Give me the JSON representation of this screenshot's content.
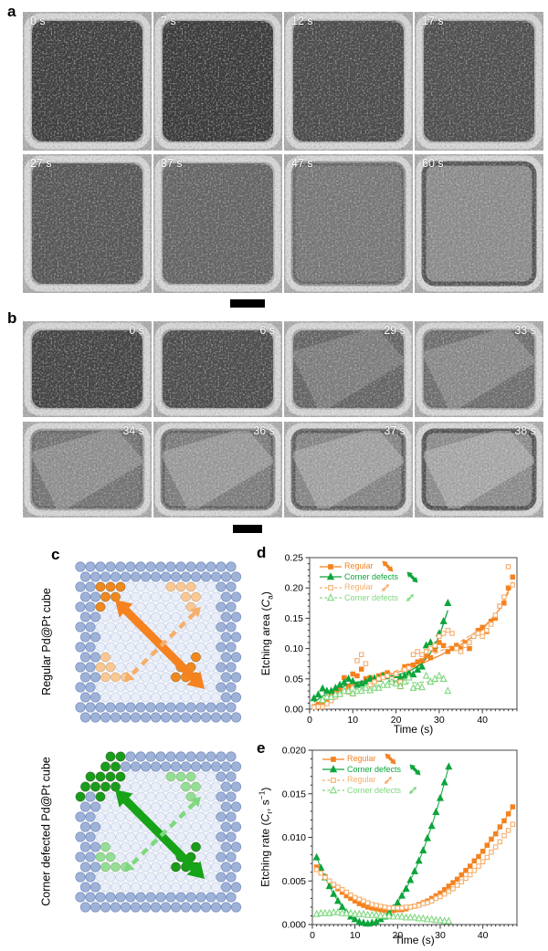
{
  "panel_a": {
    "label": "a",
    "frames": [
      {
        "time": "0 s",
        "etch": 0.05
      },
      {
        "time": "7 s",
        "etch": 0.0
      },
      {
        "time": "12 s",
        "etch": 0.18
      },
      {
        "time": "17 s",
        "etch": 0.22
      },
      {
        "time": "27 s",
        "etch": 0.3
      },
      {
        "time": "37 s",
        "etch": 0.45
      },
      {
        "time": "47 s",
        "etch": 0.65
      },
      {
        "time": "60 s",
        "etch": 0.85
      }
    ]
  },
  "panel_b": {
    "label": "b",
    "frames": [
      {
        "time": "0 s",
        "etch": 0.1
      },
      {
        "time": "6 s",
        "etch": 0.2
      },
      {
        "time": "29 s",
        "etch": 0.45
      },
      {
        "time": "33 s",
        "etch": 0.55
      },
      {
        "time": "34 s",
        "etch": 0.6
      },
      {
        "time": "36 s",
        "etch": 0.7
      },
      {
        "time": "37 s",
        "etch": 0.78
      },
      {
        "time": "38 s",
        "etch": 0.85
      }
    ]
  },
  "panel_c": {
    "label": "c",
    "atom_colors": {
      "border": "#9FB3D9",
      "border_stroke": "#7C93C0",
      "inner": "#E9EEF8",
      "inner_stroke": "#C9D3E7"
    },
    "cubes": [
      {
        "title": "Regular Pd@Pt cube",
        "defect": false,
        "strong_color": "#F08A1F",
        "light_color": "#FAC893",
        "arrow_solid": "#F5821F",
        "arrow_dashed": "#F6AE6B"
      },
      {
        "title": "Corner defected Pd@Pt cube",
        "defect": true,
        "strong_color": "#1B9C1B",
        "light_color": "#95DE95",
        "arrow_solid": "#17A317",
        "arrow_dashed": "#7FD87F"
      }
    ]
  },
  "chart_data": [
    {
      "id": "d",
      "label": "d",
      "type": "scatter",
      "xlabel": "Time (s)",
      "ylabel_parts": [
        {
          "t": "Etching area ("
        },
        {
          "t": "C",
          "i": true
        },
        {
          "t": "a",
          "sub": true
        },
        {
          "t": ")"
        }
      ],
      "xlim": [
        0,
        48
      ],
      "ylim": [
        0,
        0.25
      ],
      "xticks": [
        0,
        10,
        20,
        30,
        40
      ],
      "x_minor_step": 1,
      "yticks": [
        0,
        0.05,
        0.1,
        0.15,
        0.2,
        0.25
      ],
      "y_minor_step": 0.01,
      "y_decimals": 2,
      "grid": false,
      "legend_position": "upper-left",
      "legend": [
        {
          "label": "Regular",
          "color": "#F5821F",
          "marker": "square",
          "filled": true,
          "line": "solid",
          "arrow": {
            "style": "solid",
            "color": "#F5821F",
            "size": 17
          }
        },
        {
          "label": "Corner defects",
          "color": "#0DA53C",
          "marker": "triangle",
          "filled": true,
          "line": "solid",
          "arrow": {
            "style": "solid",
            "color": "#0DA53C",
            "size": 17
          }
        },
        {
          "label": "Regular",
          "color": "#F6AE6B",
          "marker": "square",
          "filled": false,
          "line": "dashed",
          "arrow": {
            "style": "dashed",
            "color": "#F6AE6B",
            "size": 12
          }
        },
        {
          "label": "Corner defects",
          "color": "#7FD87F",
          "marker": "triangle",
          "filled": false,
          "line": "dashed",
          "arrow": {
            "style": "dashed",
            "color": "#7FD87F",
            "size": 12
          }
        }
      ],
      "series": [
        {
          "name": "Regular",
          "marker": "square",
          "filled": true,
          "line": "none",
          "color": "#F5821F",
          "x0": 1,
          "dx": 1,
          "y": [
            0.004,
            0.008,
            0.012,
            0.013,
            0.022,
            0.028,
            0.033,
            0.052,
            0.038,
            0.058,
            0.055,
            0.066,
            0.05,
            0.052,
            0.047,
            0.055,
            0.057,
            0.06,
            0.048,
            0.042,
            0.037,
            0.07,
            0.071,
            0.073,
            0.078,
            0.08,
            0.088,
            0.085,
            0.098,
            0.11,
            0.105,
            0.095,
            0.1,
            0.105,
            0.1,
            0.11,
            0.1,
            0.12,
            0.13,
            0.135,
            0.128,
            0.145,
            0.15,
            0.17,
            0.175,
            0.2,
            0.218
          ]
        },
        {
          "name": "Corner defects",
          "marker": "triangle",
          "filled": true,
          "line": "none",
          "color": "#0DA53C",
          "x0": 1,
          "dx": 1,
          "y": [
            0.018,
            0.024,
            0.034,
            0.03,
            0.03,
            0.035,
            0.04,
            0.044,
            0.05,
            0.046,
            0.04,
            0.042,
            0.045,
            0.05,
            0.051,
            0.05,
            0.055,
            0.054,
            0.05,
            0.056,
            0.052,
            0.055,
            0.06,
            0.057,
            0.065,
            0.07,
            0.105,
            0.11,
            0.105,
            0.125,
            0.145,
            0.175
          ]
        },
        {
          "name": "Regular (open)",
          "marker": "square",
          "filled": false,
          "line": "none",
          "color": "#F6AE6B",
          "x0": 1,
          "dx": 1,
          "y": [
            0.003,
            0.004,
            0.004,
            0.009,
            0.014,
            0.02,
            0.024,
            0.03,
            0.028,
            0.025,
            0.08,
            0.09,
            0.075,
            0.04,
            0.045,
            0.05,
            0.052,
            0.055,
            0.05,
            0.058,
            0.045,
            0.065,
            0.068,
            0.09,
            0.095,
            0.09,
            0.095,
            0.1,
            0.105,
            0.12,
            0.125,
            0.13,
            0.125,
            0.1,
            0.095,
            0.105,
            0.11,
            0.12,
            0.125,
            0.12,
            0.13,
            0.14,
            0.155,
            0.17,
            0.185,
            0.235,
            0.205
          ]
        },
        {
          "name": "Corner defects (open)",
          "marker": "triangle",
          "filled": false,
          "line": "none",
          "color": "#7FD87F",
          "x0": 3,
          "dx": 1,
          "y": [
            0.015,
            0.02,
            0.02,
            0.024,
            0.025,
            0.03,
            0.03,
            0.026,
            0.03,
            0.03,
            0.035,
            0.031,
            0.035,
            0.035,
            0.04,
            0.04,
            0.045,
            0.042,
            0.038,
            0.045,
            0.052,
            0.035,
            0.038,
            0.036,
            0.055,
            0.045,
            0.05,
            0.055,
            0.05,
            0.03
          ]
        }
      ],
      "fits": [
        {
          "style": "solid",
          "color": "#F5821F",
          "points": [
            [
              1,
              0.007
            ],
            [
              5,
              0.022
            ],
            [
              10,
              0.04
            ],
            [
              15,
              0.051
            ],
            [
              20,
              0.06
            ],
            [
              25,
              0.072
            ],
            [
              30,
              0.088
            ],
            [
              35,
              0.106
            ],
            [
              40,
              0.131
            ],
            [
              44,
              0.165
            ],
            [
              47,
              0.21
            ]
          ]
        },
        {
          "style": "dashed",
          "color": "#F6AE6B",
          "points": [
            [
              1,
              0.004
            ],
            [
              5,
              0.018
            ],
            [
              10,
              0.038
            ],
            [
              15,
              0.052
            ],
            [
              20,
              0.063
            ],
            [
              25,
              0.078
            ],
            [
              30,
              0.095
            ],
            [
              35,
              0.112
            ],
            [
              40,
              0.134
            ],
            [
              44,
              0.164
            ],
            [
              47,
              0.205
            ]
          ]
        },
        {
          "style": "solid",
          "color": "#0DA53C",
          "points": [
            [
              1,
              0.012
            ],
            [
              5,
              0.03
            ],
            [
              10,
              0.043
            ],
            [
              15,
              0.05
            ],
            [
              20,
              0.056
            ],
            [
              23,
              0.062
            ],
            [
              26,
              0.075
            ],
            [
              28,
              0.093
            ],
            [
              30,
              0.12
            ],
            [
              32,
              0.163
            ]
          ]
        },
        {
          "style": "dashed",
          "color": "#7FD87F",
          "points": [
            [
              2,
              0.02
            ],
            [
              5,
              0.027
            ],
            [
              10,
              0.033
            ],
            [
              15,
              0.038
            ],
            [
              20,
              0.042
            ],
            [
              25,
              0.044
            ],
            [
              30,
              0.046
            ],
            [
              32,
              0.046
            ]
          ]
        }
      ]
    },
    {
      "id": "e",
      "label": "e",
      "type": "line",
      "xlabel": "Time (s)",
      "ylabel_parts": [
        {
          "t": "Etching rate ("
        },
        {
          "t": "C",
          "i": true
        },
        {
          "t": "r",
          "sub": true
        },
        {
          "t": ", s"
        },
        {
          "t": "−1",
          "sup": true
        },
        {
          "t": ")"
        }
      ],
      "xlim": [
        0,
        48
      ],
      "ylim": [
        0,
        0.02
      ],
      "xticks": [
        0,
        10,
        20,
        30,
        40
      ],
      "x_minor_step": 1,
      "yticks": [
        0,
        0.005,
        0.01,
        0.015,
        0.02
      ],
      "y_minor_step": 0.001,
      "y_decimals": 3,
      "grid": false,
      "legend_position": "upper-left",
      "legend": [
        {
          "label": "Regular",
          "color": "#F5821F",
          "marker": "square",
          "filled": true,
          "line": "solid",
          "arrow": {
            "style": "solid",
            "color": "#F5821F",
            "size": 17
          }
        },
        {
          "label": "Corner defects",
          "color": "#0DA53C",
          "marker": "triangle",
          "filled": true,
          "line": "solid",
          "arrow": {
            "style": "solid",
            "color": "#0DA53C",
            "size": 17
          }
        },
        {
          "label": "Regular",
          "color": "#F6AE6B",
          "marker": "square",
          "filled": false,
          "line": "dashed",
          "arrow": {
            "style": "dashed",
            "color": "#F6AE6B",
            "size": 12
          }
        },
        {
          "label": "Corner defects",
          "color": "#7FD87F",
          "marker": "triangle",
          "filled": false,
          "line": "dashed",
          "arrow": {
            "style": "dashed",
            "color": "#7FD87F",
            "size": 12
          }
        }
      ],
      "series": [
        {
          "name": "Regular",
          "marker": "square",
          "filled": true,
          "line": "solid",
          "color": "#F5821F",
          "x0": 1,
          "dx": 1,
          "y": [
            0.0066,
            0.006,
            0.0055,
            0.005,
            0.0045,
            0.0041,
            0.0037,
            0.0033,
            0.003,
            0.0027,
            0.0024,
            0.0022,
            0.002,
            0.0019,
            0.0018,
            0.0017,
            0.0016,
            0.0016,
            0.0016,
            0.0017,
            0.0017,
            0.0018,
            0.002,
            0.0021,
            0.0023,
            0.0025,
            0.0027,
            0.003,
            0.0033,
            0.0036,
            0.004,
            0.0044,
            0.0048,
            0.0052,
            0.0057,
            0.0062,
            0.0067,
            0.0073,
            0.0078,
            0.0084,
            0.0091,
            0.0098,
            0.0104,
            0.0112,
            0.0119,
            0.0127,
            0.0135
          ]
        },
        {
          "name": "Corner defects",
          "marker": "triangle",
          "filled": true,
          "line": "solid",
          "color": "#0DA53C",
          "x0": 1,
          "dx": 1,
          "y": [
            0.0077,
            0.0065,
            0.0054,
            0.0044,
            0.0035,
            0.0027,
            0.002,
            0.0014,
            0.0009,
            0.0006,
            0.0003,
            0.0002,
            0.0001,
            0.0002,
            0.0003,
            0.0006,
            0.0009,
            0.0013,
            0.0019,
            0.0025,
            0.0033,
            0.0041,
            0.0051,
            0.0061,
            0.0073,
            0.0085,
            0.0099,
            0.0113,
            0.0129,
            0.0145,
            0.0163,
            0.0181
          ]
        },
        {
          "name": "Regular (open)",
          "marker": "square",
          "filled": false,
          "line": "dashed",
          "color": "#F6AE6B",
          "x0": 1,
          "dx": 1,
          "y": [
            0.0063,
            0.0059,
            0.0054,
            0.005,
            0.0046,
            0.0043,
            0.004,
            0.0037,
            0.0034,
            0.0031,
            0.0029,
            0.0027,
            0.0025,
            0.0023,
            0.0022,
            0.0021,
            0.002,
            0.0019,
            0.0019,
            0.0019,
            0.0019,
            0.002,
            0.002,
            0.0021,
            0.0022,
            0.0024,
            0.0025,
            0.0027,
            0.003,
            0.0032,
            0.0035,
            0.0038,
            0.0041,
            0.0045,
            0.0049,
            0.0053,
            0.0057,
            0.0062,
            0.0067,
            0.0072,
            0.0077,
            0.0083,
            0.0089,
            0.0095,
            0.0102,
            0.0108,
            0.0115
          ]
        },
        {
          "name": "Corner defects (open)",
          "marker": "triangle",
          "filled": false,
          "line": "dashed",
          "color": "#7FD87F",
          "x0": 1,
          "dx": 1,
          "y": [
            0.0012,
            0.0013,
            0.0013,
            0.0013,
            0.0014,
            0.0014,
            0.0013,
            0.0013,
            0.0013,
            0.0012,
            0.0012,
            0.0012,
            0.0011,
            0.0011,
            0.0011,
            0.001,
            0.001,
            0.001,
            0.0009,
            0.0009,
            0.0009,
            0.0008,
            0.0008,
            0.0008,
            0.0007,
            0.0007,
            0.0006,
            0.0006,
            0.0005,
            0.0005,
            0.0004,
            0.0004
          ]
        }
      ],
      "fits": []
    }
  ]
}
